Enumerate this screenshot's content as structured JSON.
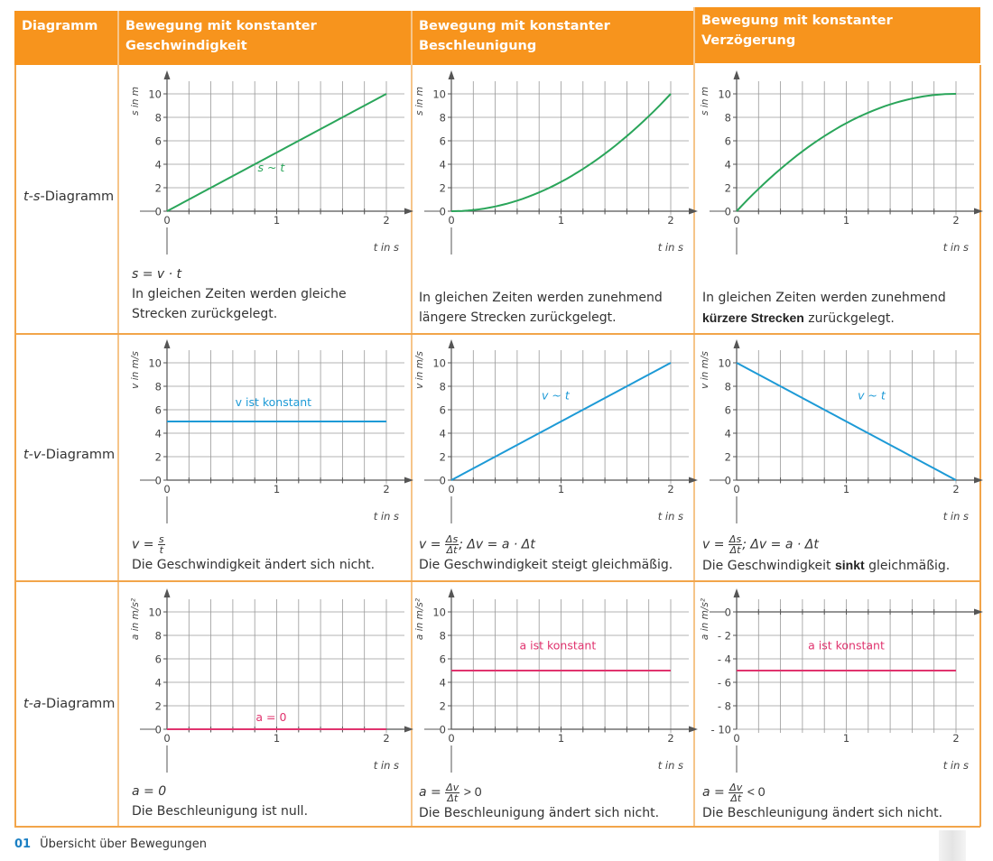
{
  "header": {
    "col0": "Diagramm",
    "col1_line1": "Bewegung mit konstanter",
    "col1_line2": "Geschwindigkeit",
    "col2_line1": "Bewegung mit konstanter",
    "col2_line2": "Beschleunigung",
    "col3_line1": "Bewegung mit konstanter",
    "col3_line2": "Verzögerung"
  },
  "rows": [
    {
      "label_var": "t-s",
      "label_suffix": "-Diagramm"
    },
    {
      "label_var": "t-v",
      "label_suffix": "-Diagramm"
    },
    {
      "label_var": "t-a",
      "label_suffix": "-Diagramm"
    }
  ],
  "captions": {
    "r0c0_formula": "s = v · t",
    "r0c0_text1": "In gleichen Zeiten werden gleiche",
    "r0c0_text2": "Strecken zurückgelegt.",
    "r0c1_text1": "In gleichen Zeiten werden zunehmend",
    "r0c1_text2": "längere Strecken zurückgelegt.",
    "r0c2_text1": "In gleichen Zeiten werden zunehmend",
    "r0c2_text2_bold": "kürzere Strecken",
    "r0c2_text2_rest": " zurückgelegt.",
    "r1c0_formula_lhs": "v =",
    "r1c0_formula_num": "s",
    "r1c0_formula_den": "t",
    "r1c0_text": "Die Geschwindigkeit ändert sich nicht.",
    "r1c1_formula_lhs": "v =",
    "r1c1_formula_num": "Δs",
    "r1c1_formula_den": "Δt",
    "r1c1_formula_rest": "; Δv = a · Δt",
    "r1c1_text": "Die Geschwindigkeit steigt gleichmäßig.",
    "r1c2_formula_lhs": "v =",
    "r1c2_formula_num": "Δs",
    "r1c2_formula_den": "Δt",
    "r1c2_formula_rest": "; Δv = a · Δt",
    "r1c2_text_pre": "Die Geschwindigkeit ",
    "r1c2_text_bold": "sinkt",
    "r1c2_text_post": " gleichmäßig.",
    "r2c0_formula": "a = 0",
    "r2c0_text": "Die Beschleunigung ist null.",
    "r2c1_formula_lhs": "a =",
    "r2c1_formula_num": "Δv",
    "r2c1_formula_den": "Δt",
    "r2c1_formula_rest": "> 0",
    "r2c1_text": "Die Beschleunigung ändert sich nicht.",
    "r2c2_formula_lhs": "a =",
    "r2c2_formula_num": "Δv",
    "r2c2_formula_den": "Δt",
    "r2c2_formula_rest": "< 0",
    "r2c2_text": "Die Beschleunigung ändert sich nicht."
  },
  "footer": {
    "number": "01",
    "title": "Übersicht über Bewegungen"
  },
  "colors": {
    "orange": "#f7941d",
    "green": "#2aa55a",
    "blue": "#1d9ad6",
    "magenta": "#e0336e",
    "grid": "#9a9a9a",
    "axis": "#555555"
  },
  "chart_data": [
    {
      "id": "ts-const-v",
      "type": "line",
      "xlabel": "t in s",
      "ylabel": "s in m",
      "xlim": [
        0,
        2
      ],
      "ylim": [
        0,
        10
      ],
      "xticks": [
        "0",
        "1",
        "2"
      ],
      "yticks": [
        "0",
        "2",
        "4",
        "6",
        "8",
        "10"
      ],
      "grid": true,
      "color": "green",
      "function": "linear",
      "x": [
        0,
        0.5,
        1,
        1.5,
        2
      ],
      "y": [
        0,
        2.5,
        5,
        7.5,
        10
      ],
      "annotation": "s ~ t"
    },
    {
      "id": "ts-const-a",
      "type": "line",
      "xlabel": "t in s",
      "ylabel": "s in m",
      "xlim": [
        0,
        2
      ],
      "ylim": [
        0,
        10
      ],
      "xticks": [
        "0",
        "1",
        "2"
      ],
      "yticks": [
        "0",
        "2",
        "4",
        "6",
        "8",
        "10"
      ],
      "grid": true,
      "color": "green",
      "function": "quadratic-up",
      "x": [
        0,
        0.5,
        1,
        1.5,
        2
      ],
      "y": [
        0,
        0.625,
        2.5,
        5.625,
        10
      ],
      "annotation": ""
    },
    {
      "id": "ts-decel",
      "type": "line",
      "xlabel": "t in s",
      "ylabel": "s in m",
      "xlim": [
        0,
        2
      ],
      "ylim": [
        0,
        10
      ],
      "xticks": [
        "0",
        "1",
        "2"
      ],
      "yticks": [
        "0",
        "2",
        "4",
        "6",
        "8",
        "10"
      ],
      "grid": true,
      "color": "green",
      "function": "quadratic-down",
      "x": [
        0,
        0.5,
        1,
        1.5,
        2
      ],
      "y": [
        0,
        4.375,
        7.5,
        9.375,
        10
      ],
      "annotation": ""
    },
    {
      "id": "tv-const-v",
      "type": "line",
      "xlabel": "t in s",
      "ylabel": "v in m/s",
      "xlim": [
        0,
        2
      ],
      "ylim": [
        0,
        10
      ],
      "xticks": [
        "0",
        "1",
        "2"
      ],
      "yticks": [
        "0",
        "2",
        "4",
        "6",
        "8",
        "10"
      ],
      "grid": true,
      "color": "blue",
      "function": "linear",
      "x": [
        0,
        2
      ],
      "y": [
        5,
        5
      ],
      "annotation": "v ist konstant"
    },
    {
      "id": "tv-const-a",
      "type": "line",
      "xlabel": "t in s",
      "ylabel": "v in m/s",
      "xlim": [
        0,
        2
      ],
      "ylim": [
        0,
        10
      ],
      "xticks": [
        "0",
        "1",
        "2"
      ],
      "yticks": [
        "0",
        "2",
        "4",
        "6",
        "8",
        "10"
      ],
      "grid": true,
      "color": "blue",
      "function": "linear",
      "x": [
        0,
        2
      ],
      "y": [
        0,
        10
      ],
      "annotation": "v ~ t"
    },
    {
      "id": "tv-decel",
      "type": "line",
      "xlabel": "t in s",
      "ylabel": "v in m/s",
      "xlim": [
        0,
        2
      ],
      "ylim": [
        0,
        10
      ],
      "xticks": [
        "0",
        "1",
        "2"
      ],
      "yticks": [
        "0",
        "2",
        "4",
        "6",
        "8",
        "10"
      ],
      "grid": true,
      "color": "blue",
      "function": "linear",
      "x": [
        0,
        2
      ],
      "y": [
        10,
        0
      ],
      "annotation": "v ~ t"
    },
    {
      "id": "ta-const-v",
      "type": "line",
      "xlabel": "t in s",
      "ylabel": "a in m/s²",
      "xlim": [
        0,
        2
      ],
      "ylim": [
        0,
        10
      ],
      "xticks": [
        "0",
        "1",
        "2"
      ],
      "yticks": [
        "0",
        "2",
        "4",
        "6",
        "8",
        "10"
      ],
      "grid": true,
      "color": "magenta",
      "function": "linear",
      "x": [
        0,
        2
      ],
      "y": [
        0,
        0
      ],
      "annotation": "a = 0"
    },
    {
      "id": "ta-const-a",
      "type": "line",
      "xlabel": "t in s",
      "ylabel": "a in m/s²",
      "xlim": [
        0,
        2
      ],
      "ylim": [
        0,
        10
      ],
      "xticks": [
        "0",
        "1",
        "2"
      ],
      "yticks": [
        "0",
        "2",
        "4",
        "6",
        "8",
        "10"
      ],
      "grid": true,
      "color": "magenta",
      "function": "linear",
      "x": [
        0,
        2
      ],
      "y": [
        5,
        5
      ],
      "annotation": "a ist konstant"
    },
    {
      "id": "ta-decel",
      "type": "line",
      "xlabel": "t in s",
      "ylabel": "a in m/s²",
      "xlim": [
        0,
        2
      ],
      "ylim": [
        -10,
        0
      ],
      "xticks": [
        "0",
        "1",
        "2"
      ],
      "yticks": [
        "-10",
        "-8",
        "-6",
        "-4",
        "-2",
        "0"
      ],
      "grid": true,
      "color": "magenta",
      "function": "linear",
      "x": [
        0,
        2
      ],
      "y": [
        -5,
        -5
      ],
      "annotation": "a ist konstant"
    }
  ]
}
